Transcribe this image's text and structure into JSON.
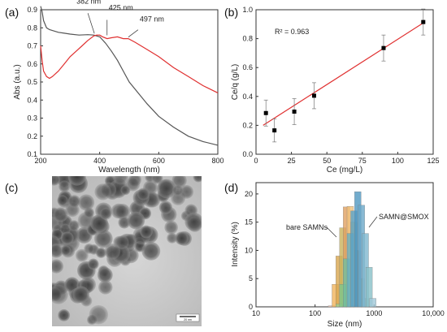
{
  "panels": [
    {
      "label": "(a)"
    },
    {
      "label": "(b)"
    },
    {
      "label": "(c)"
    },
    {
      "label": "(d)"
    }
  ],
  "chart_data": [
    {
      "panel": "(a)",
      "type": "line",
      "xlabel": "Wavelength (nm)",
      "ylabel": "Abs (a.u.)",
      "xlim": [
        200,
        800
      ],
      "ylim": [
        0.1,
        0.9
      ],
      "xticks": [
        200,
        400,
        600,
        800
      ],
      "yticks": [
        0.1,
        0.2,
        0.3,
        0.4,
        0.5,
        0.6,
        0.7,
        0.8,
        0.9
      ],
      "series": [
        {
          "color": "#555555",
          "x": [
            200,
            205,
            210,
            220,
            230,
            240,
            260,
            280,
            300,
            330,
            360,
            380,
            400,
            420,
            440,
            460,
            480,
            500,
            530,
            560,
            600,
            650,
            700,
            750,
            800
          ],
          "y": [
            0.92,
            0.89,
            0.84,
            0.8,
            0.79,
            0.785,
            0.775,
            0.77,
            0.765,
            0.76,
            0.762,
            0.76,
            0.75,
            0.715,
            0.67,
            0.62,
            0.56,
            0.5,
            0.44,
            0.38,
            0.31,
            0.25,
            0.2,
            0.17,
            0.15
          ]
        },
        {
          "color": "#e03030",
          "x": [
            200,
            205,
            210,
            220,
            230,
            240,
            260,
            280,
            300,
            320,
            340,
            360,
            380,
            390,
            400,
            410,
            425,
            440,
            460,
            480,
            497,
            520,
            560,
            600,
            650,
            700,
            750,
            800
          ],
          "y": [
            0.7,
            0.62,
            0.56,
            0.53,
            0.52,
            0.53,
            0.56,
            0.6,
            0.64,
            0.67,
            0.7,
            0.73,
            0.755,
            0.76,
            0.76,
            0.75,
            0.74,
            0.745,
            0.75,
            0.74,
            0.74,
            0.72,
            0.68,
            0.64,
            0.58,
            0.53,
            0.48,
            0.44
          ]
        }
      ],
      "annotations": [
        {
          "text": "382 nm",
          "x": 382,
          "y": 0.755
        },
        {
          "text": "425 nm",
          "x": 425,
          "y": 0.745
        },
        {
          "text": "497 nm",
          "x": 497,
          "y": 0.735
        }
      ]
    },
    {
      "panel": "(b)",
      "type": "scatter",
      "xlabel": "Ce (mg/L)",
      "ylabel": "Ce/q (g/L)",
      "xlim": [
        0,
        125
      ],
      "ylim": [
        0.0,
        1.0
      ],
      "xticks": [
        0,
        25,
        50,
        75,
        100,
        125
      ],
      "yticks": [
        0.0,
        0.2,
        0.4,
        0.6,
        0.8,
        1.0
      ],
      "points": [
        {
          "x": 7,
          "y": 0.285,
          "err": 0.09
        },
        {
          "x": 13,
          "y": 0.165,
          "err": 0.08
        },
        {
          "x": 27,
          "y": 0.295,
          "err": 0.09
        },
        {
          "x": 41,
          "y": 0.405,
          "err": 0.09
        },
        {
          "x": 90,
          "y": 0.735,
          "err": 0.09
        },
        {
          "x": 118,
          "y": 0.915,
          "err": 0.09
        }
      ],
      "fit": {
        "x": [
          5,
          119
        ],
        "y": [
          0.2,
          0.915
        ],
        "color": "#e03030"
      },
      "annotation": "R² = 0.963"
    },
    {
      "panel": "(d)",
      "type": "bar",
      "xlabel": "Size (nm)",
      "ylabel": "Intensity (%)",
      "xscale": "log",
      "xlim": [
        10,
        10000
      ],
      "ylim": [
        0,
        22
      ],
      "xticks": [
        10,
        100,
        1000,
        10000
      ],
      "xticklabels": [
        "10",
        "100",
        "1000",
        "10,000"
      ],
      "yticks": [
        0,
        5,
        10,
        15,
        20
      ],
      "series": [
        {
          "name": "bare SAMNs",
          "bins": [
            {
              "x": 190,
              "v": 0.2
            },
            {
              "x": 220,
              "v": 4.0
            },
            {
              "x": 255,
              "v": 9.0
            },
            {
              "x": 295,
              "v": 14.0
            },
            {
              "x": 340,
              "v": 17.7
            },
            {
              "x": 395,
              "v": 17.8
            },
            {
              "x": 455,
              "v": 15.0
            },
            {
              "x": 530,
              "v": 10.0
            },
            {
              "x": 610,
              "v": 5.0
            },
            {
              "x": 710,
              "v": 1.5
            }
          ]
        },
        {
          "name": "SAMN@SMOX",
          "bins": [
            {
              "x": 255,
              "v": 0.5
            },
            {
              "x": 295,
              "v": 4.0
            },
            {
              "x": 340,
              "v": 8.5
            },
            {
              "x": 395,
              "v": 13.0
            },
            {
              "x": 455,
              "v": 17.0
            },
            {
              "x": 530,
              "v": 20.4
            },
            {
              "x": 610,
              "v": 18.0
            },
            {
              "x": 710,
              "v": 13.0
            },
            {
              "x": 820,
              "v": 7.0
            },
            {
              "x": 950,
              "v": 1.5
            }
          ]
        }
      ]
    }
  ],
  "tem": {
    "scale_bar_label": "20 nm"
  }
}
